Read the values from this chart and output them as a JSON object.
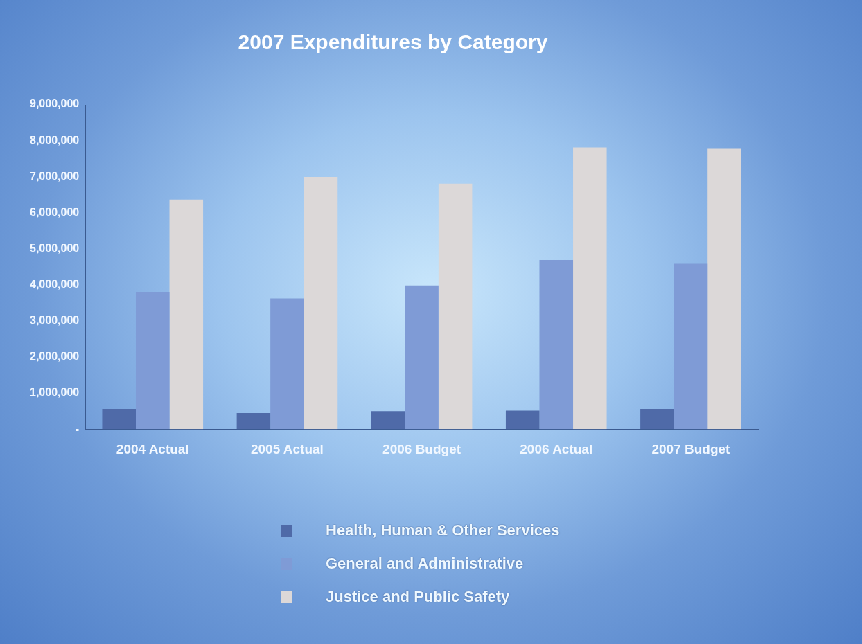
{
  "chart_data": {
    "type": "bar",
    "title": "2007 Expenditures by Category",
    "categories": [
      "2004 Actual",
      "2005 Actual",
      "2006 Budget",
      "2006 Actual",
      "2007 Budget"
    ],
    "series": [
      {
        "name": "Health, Human & Other Services",
        "color": "#4f6aa8",
        "values": [
          560000,
          450000,
          500000,
          530000,
          580000
        ]
      },
      {
        "name": "General and Administrative",
        "color": "#7f9bd6",
        "values": [
          3800000,
          3620000,
          3980000,
          4700000,
          4600000
        ]
      },
      {
        "name": "Justice and Public Safety",
        "color": "#dcd8d8",
        "values": [
          6360000,
          6990000,
          6820000,
          7800000,
          7780000
        ]
      }
    ],
    "ylim": [
      0,
      9000000
    ],
    "yticks": [
      {
        "value": 0,
        "label": "-"
      },
      {
        "value": 1000000,
        "label": "1,000,000"
      },
      {
        "value": 2000000,
        "label": "2,000,000"
      },
      {
        "value": 3000000,
        "label": "3,000,000"
      },
      {
        "value": 4000000,
        "label": "4,000,000"
      },
      {
        "value": 5000000,
        "label": "5,000,000"
      },
      {
        "value": 6000000,
        "label": "6,000,000"
      },
      {
        "value": 7000000,
        "label": "7,000,000"
      },
      {
        "value": 8000000,
        "label": "8,000,000"
      },
      {
        "value": 9000000,
        "label": "9,000,000"
      }
    ],
    "grid": false,
    "legend": "bottom"
  }
}
